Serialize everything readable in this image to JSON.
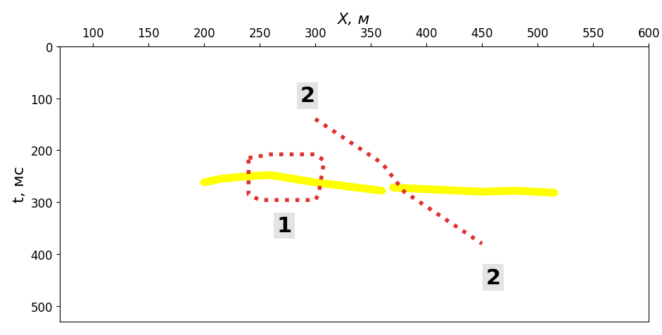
{
  "chart_data": {
    "type": "line",
    "x_label": "X, м",
    "y_label": "t, мс",
    "xlim": [
      70,
      600
    ],
    "ylim": [
      530,
      0
    ],
    "xticks": [
      100,
      150,
      200,
      250,
      300,
      350,
      400,
      450,
      500,
      550,
      600
    ],
    "yticks": [
      0,
      100,
      200,
      300,
      400,
      500
    ],
    "grid": false,
    "series": [
      {
        "color": "#ffff00",
        "line_style": "solid",
        "x": [
          200,
          215,
          240,
          260,
          280,
          300,
          330,
          360,
          365,
          370,
          400,
          450,
          480,
          515
        ],
        "values": [
          262,
          255,
          250,
          248,
          255,
          262,
          270,
          278,
          null,
          272,
          275,
          280,
          278,
          282
        ]
      },
      {
        "color": "#e03030",
        "line_style": "dotted",
        "x": [
          240,
          260,
          300,
          308,
          303,
          300,
          250,
          240,
          240
        ],
        "values": [
          215,
          208,
          208,
          220,
          285,
          296,
          296,
          285,
          215
        ]
      },
      {
        "color": "#e03030",
        "line_style": "dotted",
        "x": [
          300,
          360,
          380,
          450
        ],
        "values": [
          140,
          225,
          280,
          380
        ]
      }
    ],
    "annotations": [
      {
        "text": "1",
        "x": 272,
        "y": 345
      },
      {
        "text": "2",
        "x": 293,
        "y": 95
      },
      {
        "text": "2",
        "x": 460,
        "y": 445
      }
    ]
  }
}
